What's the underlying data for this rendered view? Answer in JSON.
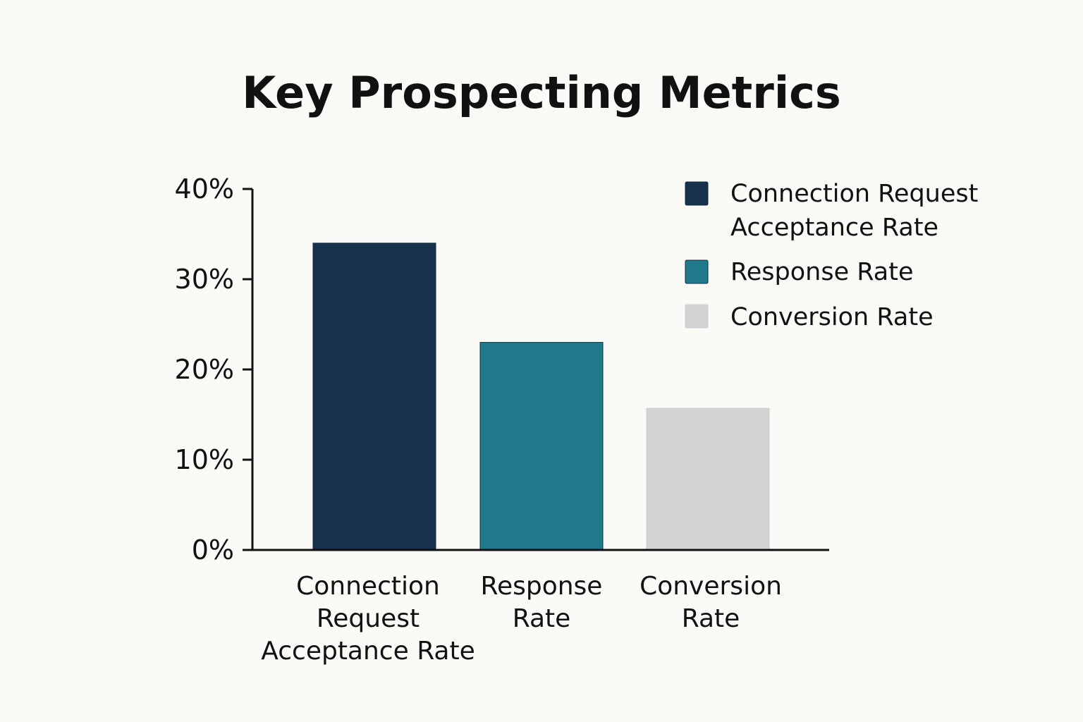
{
  "chart_data": {
    "type": "bar",
    "title": "Key Prospecting Metrics",
    "xlabel": "",
    "ylabel": "",
    "categories": [
      [
        "Connection",
        "Request",
        "Acceptance Rate"
      ],
      [
        "Response",
        "Rate"
      ],
      [
        "Conversion",
        "Rate"
      ]
    ],
    "values": [
      34,
      23,
      15.7
    ],
    "unit": "%",
    "ylim": [
      0,
      40
    ],
    "yticks": [
      0,
      10,
      20,
      30,
      40
    ],
    "ytick_labels": [
      "0%",
      "10%",
      "20%",
      "30%",
      "40%"
    ],
    "grid": false,
    "legend": {
      "placement": "top-right",
      "entries": [
        [
          "Connection Request",
          "Acceptance Rate"
        ],
        [
          "Response Rate"
        ],
        [
          "Conversion Rate"
        ]
      ]
    },
    "colors": [
      "#17304b",
      "#207a8b",
      "#d3d3d5"
    ]
  },
  "colors": {
    "background": "#fafaf7",
    "text": "#111111",
    "axis": "#111111"
  }
}
